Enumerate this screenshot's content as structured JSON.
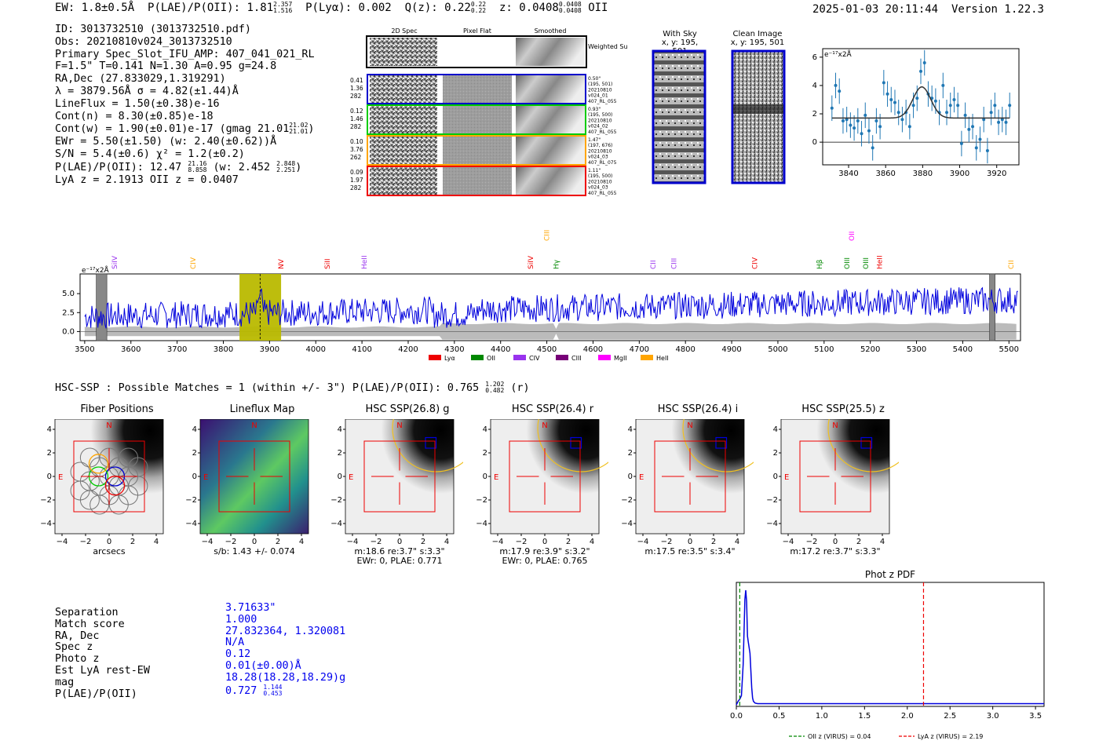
{
  "header": {
    "ew": "EW: 1.8±0.5Å",
    "plae_label": "P(LAE)/P(OII): 1.81",
    "plae_hi": "2.357",
    "plae_lo": "1.516",
    "plya": "P(Lyα): 0.002",
    "qz": "Q(z): 0.22",
    "qz_hi": "0.22",
    "qz_lo": "0.22",
    "z": "z: 0.0408",
    "z_hi": "0.0408",
    "z_lo": "0.0408",
    "line": "OII",
    "timestamp": "2025-01-03 20:11:44",
    "version": "Version 1.22.3"
  },
  "info": {
    "id": "ID: 3013732510 (3013732510.pdf)",
    "obs": "Obs: 20210810v024_3013732510",
    "primary": "Primary Spec_Slot_IFU_AMP: 407_041_021_RL",
    "params": "F=1.5\"  T=0.141  N=1.30  A=0.95  g=24.8",
    "radec": "RA,Dec (27.833029,1.319291)",
    "lambda": "λ = 3879.56Å  σ = 4.82(±1.44)Å",
    "lineflux": "LineFlux = 1.50(±0.38)e-16",
    "contn": "Cont(n) = 8.30(±0.85)e-18",
    "contw": "Cont(w) = 1.90(±0.01)e-17 (gmag 21.01",
    "contw_hi": "21.02",
    "contw_lo": "21.01",
    "ewr": "EWr = 5.50(±1.50) (w: 2.40(±0.62))Å",
    "sn": "S/N = 5.4(±0.6)  χ² = 1.2(±0.2)",
    "plae": "P(LAE)/P(OII): 12.47",
    "plae_hi": "21.16",
    "plae_lo": "8.858",
    "plae_w": "(w: 2.452",
    "plae_w_hi": "2.848",
    "plae_w_lo": "2.251",
    "lyaz": "LyA z = 2.1913  OII z = 0.0407"
  },
  "cutouts": {
    "col_titles": [
      "2D Spec",
      "Pixel Flat",
      "Smoothed"
    ],
    "weighted_sum": "Weighted Sum",
    "rows": [
      {
        "left": [
          "0.41",
          "1.36",
          "282"
        ],
        "right": [
          "0.50\"",
          "(195, 501)",
          "20210810",
          "v024_01",
          "407_RL_055"
        ],
        "color": "#0000cc"
      },
      {
        "left": [
          "0.12",
          "1.46",
          "282"
        ],
        "right": [
          "0.93\"",
          "(195, 500)",
          "20210810",
          "v024_02",
          "407_RL_055"
        ],
        "color": "#00cc00"
      },
      {
        "left": [
          "0.10",
          "3.76",
          "262"
        ],
        "right": [
          "1.47\"",
          "(197, 676)",
          "20210810",
          "v024_03",
          "407_RL_075"
        ],
        "color": "#ffa500"
      },
      {
        "left": [
          "0.09",
          "1.97",
          "282"
        ],
        "right": [
          "1.11\"",
          "(195, 500)",
          "20210810",
          "v024_03",
          "407_RL_055"
        ],
        "color": "#ee0000"
      }
    ],
    "with_sky_title": "With Sky",
    "with_sky_xy": "x, y: 195, 501",
    "clean_title": "Clean Image",
    "clean_xy": "x, y: 195, 501"
  },
  "line_fit_chart": {
    "type": "scatter",
    "ylabel": "e⁻¹⁷x2Å",
    "xlim": [
      3826,
      3932
    ],
    "ylim": [
      -1.6,
      6.6
    ],
    "xticks": [
      "3840",
      "3860",
      "3880",
      "3900",
      "3920"
    ],
    "yticks": [
      "0",
      "2",
      "4",
      "6"
    ],
    "x": [
      3831,
      3833,
      3835,
      3837,
      3839,
      3841,
      3843,
      3845,
      3847,
      3849,
      3851,
      3853,
      3855,
      3857,
      3859,
      3861,
      3863,
      3865,
      3867,
      3869,
      3871,
      3873,
      3875,
      3877,
      3879,
      3881,
      3883,
      3885,
      3887,
      3889,
      3891,
      3893,
      3895,
      3897,
      3899,
      3901,
      3903,
      3905,
      3907,
      3909,
      3911,
      3913,
      3915,
      3917,
      3919,
      3921,
      3923,
      3925,
      3927
    ],
    "y": [
      2.4,
      4.0,
      3.6,
      1.5,
      1.6,
      1.2,
      1.0,
      1.5,
      0.6,
      1.9,
      0.8,
      -0.4,
      1.5,
      1.1,
      4.2,
      3.4,
      3.0,
      2.8,
      2.1,
      1.6,
      2.1,
      1.1,
      2.6,
      3.1,
      5.0,
      5.6,
      3.4,
      3.1,
      2.9,
      2.1,
      4.0,
      2.1,
      2.6,
      3.0,
      2.6,
      -0.1,
      1.9,
      0.9,
      1.1,
      -0.4,
      0.2,
      1.6,
      -0.6,
      2.1,
      2.6,
      1.4,
      1.6,
      1.4,
      2.6
    ],
    "fit_continuum": 1.7,
    "fit_peak": 3.9,
    "fit_center": 3879.56,
    "fit_sigma": 4.82
  },
  "spectrum_chart": {
    "type": "line",
    "ylabel": "e⁻¹⁷x2Å",
    "xlim": [
      3490,
      5525
    ],
    "ylim": [
      -1.2,
      7.6
    ],
    "xticks": [
      "3500",
      "3600",
      "3700",
      "3800",
      "3900",
      "4000",
      "4100",
      "4200",
      "4300",
      "4400",
      "4500",
      "4600",
      "4700",
      "4800",
      "4900",
      "5000",
      "5100",
      "5200",
      "5300",
      "5400",
      "5500"
    ],
    "yticks": [
      "0.0",
      "2.5",
      "5.0"
    ],
    "highlight_range": [
      3835,
      3925
    ],
    "line_wave": 3879.56,
    "masked_ranges": [
      [
        3525,
        3548
      ],
      [
        5458,
        5470
      ]
    ],
    "line_labels": [
      {
        "name": "SiIV",
        "wave": 3565,
        "color": "#9933ee",
        "high": false
      },
      {
        "name": "CIV",
        "wave": 3565,
        "color": "#ffa500",
        "high": false
      },
      {
        "name": "NV",
        "wave": 3925,
        "color": "#ee0000",
        "high": false
      },
      {
        "name": "SiII",
        "wave": 4025,
        "color": "#ee0000",
        "high": false
      },
      {
        "name": "HeII",
        "wave": 4105,
        "color": "#9933ee",
        "high": false
      },
      {
        "name": "SiIV",
        "wave": 4465,
        "color": "#ee0000",
        "high": false
      },
      {
        "name": "CIII",
        "wave": 4500,
        "color": "#ffa500",
        "high": true
      },
      {
        "name": "Hγ",
        "wave": 4520,
        "color": "#008800",
        "high": false
      },
      {
        "name": "CII",
        "wave": 4730,
        "color": "#9933ee",
        "high": false
      },
      {
        "name": "CIII",
        "wave": 4775,
        "color": "#9933ee",
        "high": false
      },
      {
        "name": "CIV",
        "wave": 4950,
        "color": "#ee0000",
        "high": false
      },
      {
        "name": "OII",
        "wave": 5160,
        "color": "#ff00ff",
        "high": true
      },
      {
        "name": "Hβ",
        "wave": 5090,
        "color": "#008800",
        "high": false
      },
      {
        "name": "OIII",
        "wave": 5150,
        "color": "#008800",
        "high": false
      },
      {
        "name": "OIII",
        "wave": 5190,
        "color": "#008800",
        "high": false
      },
      {
        "name": "HeII",
        "wave": 5220,
        "color": "#ee0000",
        "high": false
      },
      {
        "name": "CII",
        "wave": 5505,
        "color": "#ffa500",
        "high": false
      }
    ],
    "legend": [
      {
        "name": "Lyα",
        "color": "#ee0000"
      },
      {
        "name": "OII",
        "color": "#008800"
      },
      {
        "name": "CIV",
        "color": "#9933ee"
      },
      {
        "name": "CIII",
        "color": "#770077"
      },
      {
        "name": "MgII",
        "color": "#ff00ff"
      },
      {
        "name": "HeII",
        "color": "#ffa500"
      }
    ]
  },
  "hsc": {
    "title": "HSC-SSP : Possible Matches = 1 (within +/- 3\")  P(LAE)/P(OII): 0.765",
    "title_hi": "1.202",
    "title_lo": "0.482",
    "title_band": "(r)",
    "panels": [
      {
        "title": "Fiber Positions",
        "cap1": "arcsecs",
        "cap2": ""
      },
      {
        "title": "Lineflux Map",
        "cap1": "s/b: 1.43 +/- 0.074",
        "cap2": ""
      },
      {
        "title": "HSC SSP(26.8) g",
        "cap1": "m:18.6  re:3.7\"  s:3.3\"",
        "cap2": "EWr: 0, PLAE: 0.771"
      },
      {
        "title": "HSC SSP(26.4) r",
        "cap1": "m:17.9  re:3.9\"  s:3.2\"",
        "cap2": "EWr: 0, PLAE: 0.765"
      },
      {
        "title": "HSC SSP(26.4) i",
        "cap1": "m:17.5  re:3.5\"  s:3.4\"",
        "cap2": ""
      },
      {
        "title": "HSC SSP(25.5) z",
        "cap1": "m:17.2  re:3.7\"  s:3.3\"",
        "cap2": ""
      }
    ],
    "ticks": [
      "−4",
      "−2",
      "0",
      "2",
      "4"
    ],
    "north": "N",
    "east": "E"
  },
  "match": {
    "labels": [
      "Separation",
      "Match score",
      "RA, Dec",
      "Spec z",
      "Photo z",
      "Est LyA rest-EW",
      "mag",
      "P(LAE)/P(OII)"
    ],
    "separation": "3.71633\"",
    "match_score": "1.000",
    "radec": "27.832364, 1.320081",
    "specz": "N/A",
    "photoz": "0.12",
    "ew": "0.01(±0.00)Å",
    "mag": "18.28(18.28,18.29)g",
    "plae": "0.727",
    "plae_hi": "1.144",
    "plae_lo": "0.453"
  },
  "photz_chart": {
    "type": "line",
    "title": "Phot z PDF",
    "xlim": [
      0,
      3.6
    ],
    "xticks": [
      "0.0",
      "0.5",
      "1.0",
      "1.5",
      "2.0",
      "2.5",
      "3.0",
      "3.5"
    ],
    "oii_z": 0.04,
    "lya_z": 2.19,
    "legend_oii": "OII z (VIRUS) = 0.04",
    "legend_lya": "LyA z (VIRUS) = 2.19",
    "x": [
      0.0,
      0.02,
      0.04,
      0.06,
      0.08,
      0.1,
      0.11,
      0.12,
      0.13,
      0.14,
      0.15,
      0.16,
      0.17,
      0.18,
      0.19,
      0.2,
      0.22,
      0.25,
      0.3,
      0.5,
      1.0,
      2.0,
      3.0,
      3.6
    ],
    "y": [
      0.0,
      0.03,
      0.05,
      0.08,
      0.35,
      0.92,
      1.0,
      0.9,
      0.6,
      0.55,
      0.5,
      0.45,
      0.3,
      0.15,
      0.06,
      0.03,
      0.015,
      0.01,
      0.01,
      0.01,
      0.01,
      0.01,
      0.01,
      0.01
    ]
  }
}
